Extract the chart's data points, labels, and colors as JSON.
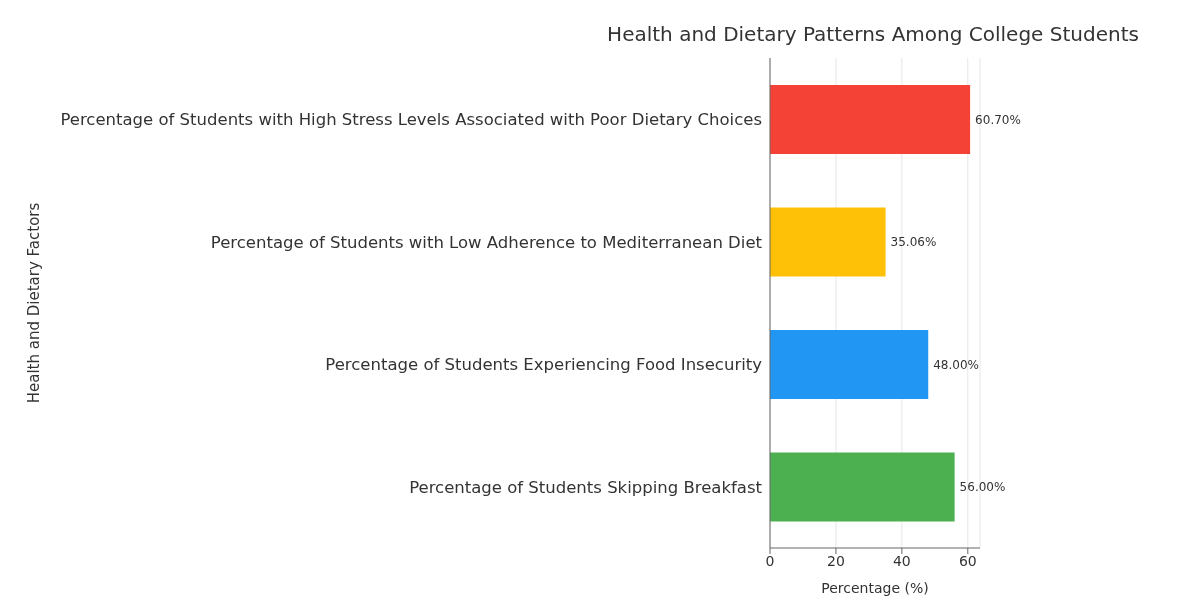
{
  "chart_data": {
    "type": "bar",
    "orientation": "horizontal",
    "title": "Health and Dietary Patterns Among College Students",
    "xlabel": "Percentage (%)",
    "ylabel": "Health and Dietary Factors",
    "categories": [
      "Percentage of Students with High Stress Levels Associated with Poor Dietary Choices",
      "Percentage of Students with Low Adherence to Mediterranean Diet",
      "Percentage of Students Experiencing Food Insecurity",
      "Percentage of Students Skipping Breakfast"
    ],
    "values": [
      60.7,
      35.06,
      48.0,
      56.0
    ],
    "colors": [
      "#f44336",
      "#ffc107",
      "#2196f3",
      "#4caf50"
    ],
    "value_labels": [
      "60.70%",
      "35.06%",
      "48.00%",
      "56.00%"
    ],
    "xlim": [
      0,
      63.7
    ],
    "xticks": [
      0,
      20,
      40,
      60
    ],
    "grid": "x"
  }
}
